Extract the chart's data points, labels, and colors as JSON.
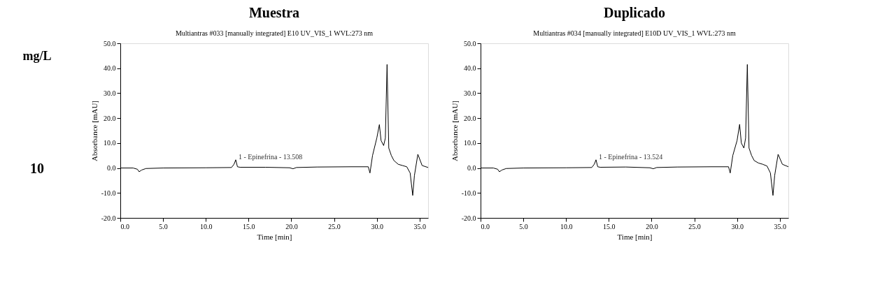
{
  "chart_data": [
    {
      "type": "other",
      "title": "mg/L",
      "annotations": [
        "10"
      ]
    },
    {
      "type": "line",
      "title": "Muestra",
      "subtitle": "Multiantras #033 [manually integrated]   E10   UV_VIS_1 WVL:273 nm",
      "xlabel": "Time [min]",
      "ylabel": "Absorbance [mAU]",
      "xlim": [
        0,
        36
      ],
      "xticks": [
        {
          "value": 0,
          "label": "0.0"
        },
        {
          "value": 5,
          "label": "5.0"
        },
        {
          "value": 10,
          "label": "10.0"
        },
        {
          "value": 15,
          "label": "15.0"
        },
        {
          "value": 20,
          "label": "20.0"
        },
        {
          "value": 25,
          "label": "25.0"
        },
        {
          "value": 30,
          "label": "30.0"
        },
        {
          "value": 35,
          "label": "35.0"
        }
      ],
      "ylim": [
        -20,
        50
      ],
      "yticks": [
        {
          "value": -20,
          "label": "-20.0"
        },
        {
          "value": -10,
          "label": "-10.0"
        },
        {
          "value": 0,
          "label": "0.0"
        },
        {
          "value": 10,
          "label": "10.0"
        },
        {
          "value": 20,
          "label": "20.0"
        },
        {
          "value": 30,
          "label": "30.0"
        },
        {
          "value": 40,
          "label": "40.0"
        },
        {
          "value": 50,
          "label": "50.0"
        }
      ],
      "grid": false,
      "annotations": [
        {
          "text": "1 - Epinefrina - 13.508",
          "x": 13.5,
          "y": 3.3
        }
      ],
      "series": [
        {
          "color": "#000000",
          "x": [
            0,
            1.5,
            2.0,
            2.2,
            2.5,
            3.0,
            5,
            10,
            13.0,
            13.3,
            13.5,
            13.7,
            14.0,
            17,
            19.8,
            20.2,
            20.6,
            23,
            27,
            29.0,
            29.2,
            29.5,
            30.0,
            30.3,
            30.5,
            30.8,
            31.0,
            31.2,
            31.4,
            31.7,
            32.0,
            32.5,
            33.0,
            33.5,
            33.9,
            34.2,
            34.4,
            34.8,
            35.3,
            36
          ],
          "values": [
            0,
            0,
            -0.5,
            -1.5,
            -0.8,
            -0.2,
            0,
            0.1,
            0.2,
            1.5,
            3.3,
            0.5,
            0.3,
            0.3,
            0.1,
            -0.3,
            0.2,
            0.4,
            0.5,
            0.5,
            -2,
            5,
            12,
            17.4,
            11,
            9,
            12,
            41.5,
            8,
            5,
            3,
            1.5,
            1,
            0.5,
            -2,
            -11,
            -3,
            5.5,
            1,
            0.2
          ]
        }
      ]
    },
    {
      "type": "line",
      "title": "Duplicado",
      "subtitle": "Multiantras #034 [manually integrated]   E10D   UV_VIS_1 WVL:273 nm",
      "xlabel": "Time [min]",
      "ylabel": "Absorbance [mAU]",
      "xlim": [
        0,
        36
      ],
      "xticks": [
        {
          "value": 0,
          "label": "0.0"
        },
        {
          "value": 5,
          "label": "5.0"
        },
        {
          "value": 10,
          "label": "10.0"
        },
        {
          "value": 15,
          "label": "15.0"
        },
        {
          "value": 20,
          "label": "20.0"
        },
        {
          "value": 25,
          "label": "25.0"
        },
        {
          "value": 30,
          "label": "30.0"
        },
        {
          "value": 35,
          "label": "35.0"
        }
      ],
      "ylim": [
        -20,
        50
      ],
      "yticks": [
        {
          "value": -20,
          "label": "-20.0"
        },
        {
          "value": -10,
          "label": "-10.0"
        },
        {
          "value": 0,
          "label": "0.0"
        },
        {
          "value": 10,
          "label": "10.0"
        },
        {
          "value": 20,
          "label": "20.0"
        },
        {
          "value": 30,
          "label": "30.0"
        },
        {
          "value": 40,
          "label": "40.0"
        },
        {
          "value": 50,
          "label": "50.0"
        }
      ],
      "grid": false,
      "annotations": [
        {
          "text": "1 - Epinefrina - 13.524",
          "x": 13.5,
          "y": 3.3
        }
      ],
      "series": [
        {
          "color": "#000000",
          "x": [
            0,
            1.5,
            2.0,
            2.2,
            2.5,
            3.0,
            5,
            10,
            13.0,
            13.3,
            13.5,
            13.7,
            14.0,
            17,
            19.8,
            20.2,
            20.6,
            23,
            27,
            29.0,
            29.2,
            29.5,
            30.0,
            30.3,
            30.5,
            30.8,
            31.0,
            31.2,
            31.4,
            31.7,
            32.0,
            32.5,
            33.0,
            33.5,
            33.9,
            34.2,
            34.4,
            34.8,
            35.3,
            36
          ],
          "values": [
            0,
            0,
            -0.5,
            -1.5,
            -0.8,
            -0.2,
            0,
            0.1,
            0.2,
            1.5,
            3.3,
            0.5,
            0.3,
            0.4,
            0.1,
            -0.3,
            0.2,
            0.4,
            0.5,
            0.5,
            -2,
            5,
            11,
            17.5,
            10,
            8,
            12,
            41.5,
            8,
            5,
            3,
            2,
            1.5,
            0.8,
            -2,
            -11,
            -3,
            5.5,
            1.5,
            0.5
          ]
        }
      ]
    }
  ]
}
